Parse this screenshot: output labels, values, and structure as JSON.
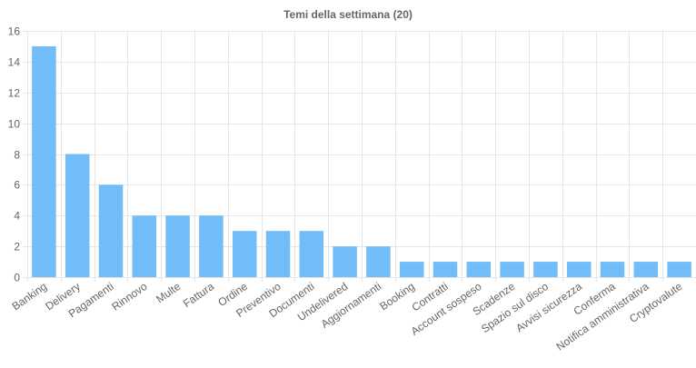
{
  "chart_data": {
    "type": "bar",
    "title": "Temi della settimana (20)",
    "categories": [
      "Banking",
      "Delivery",
      "Pagamenti",
      "Rinnovo",
      "Multe",
      "Fattura",
      "Ordine",
      "Preventivo",
      "Documenti",
      "Undelivered",
      "Aggiornamenti",
      "Booking",
      "Contratti",
      "Account sospeso",
      "Scadenze",
      "Spazio sul disco",
      "Avvisi sicurezza",
      "Conferma",
      "Notifica amministrativa",
      "Cryptovalute"
    ],
    "values": [
      15,
      8,
      6,
      4,
      4,
      4,
      3,
      3,
      3,
      2,
      2,
      1,
      1,
      1,
      1,
      1,
      1,
      1,
      1,
      1
    ],
    "ylim": [
      0,
      16
    ],
    "yticks": [
      0,
      2,
      4,
      6,
      8,
      10,
      12,
      14,
      16
    ],
    "grid": true,
    "legend": "none",
    "colors": {
      "bar": "#70bdf9",
      "grid": "#e6e6e6",
      "axis_text": "#666666"
    }
  }
}
